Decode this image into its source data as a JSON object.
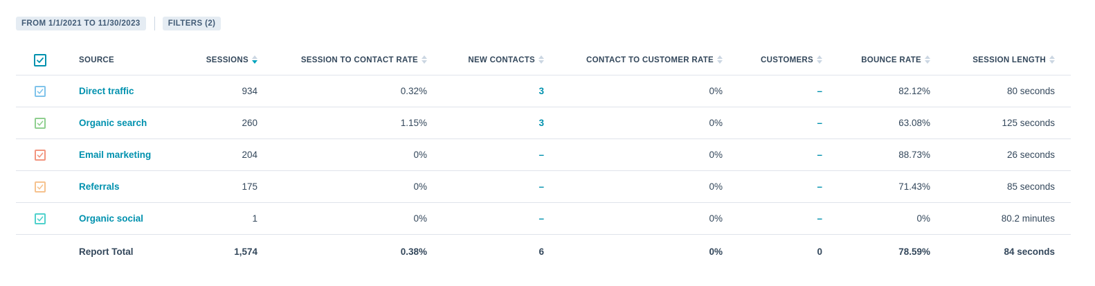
{
  "filters": {
    "date_range": "FROM 1/1/2021 TO 11/30/2023",
    "filters": "FILTERS (2)"
  },
  "columns": {
    "source": "SOURCE",
    "sessions": "SESSIONS",
    "session_to_contact_rate": "SESSION TO CONTACT RATE",
    "new_contacts": "NEW CONTACTS",
    "contact_to_customer_rate": "CONTACT TO CUSTOMER RATE",
    "customers": "CUSTOMERS",
    "bounce_rate": "BOUNCE RATE",
    "session_length": "SESSION LENGTH"
  },
  "colors": {
    "header_checkbox": "#0091ae",
    "active_sort": "#00a4bd",
    "link": "#0091ae"
  },
  "rows": [
    {
      "source": "Direct traffic",
      "checkbox_color": "#7fc3ea",
      "sessions": "934",
      "session_to_contact_rate": "0.32%",
      "new_contacts": "3",
      "contact_to_customer_rate": "0%",
      "customers": "–",
      "bounce_rate": "82.12%",
      "session_length": "80 seconds"
    },
    {
      "source": "Organic search",
      "checkbox_color": "#8fcf8f",
      "sessions": "260",
      "session_to_contact_rate": "1.15%",
      "new_contacts": "3",
      "contact_to_customer_rate": "0%",
      "customers": "–",
      "bounce_rate": "63.08%",
      "session_length": "125 seconds"
    },
    {
      "source": "Email marketing",
      "checkbox_color": "#f2957f",
      "sessions": "204",
      "session_to_contact_rate": "0%",
      "new_contacts": "–",
      "contact_to_customer_rate": "0%",
      "customers": "–",
      "bounce_rate": "88.73%",
      "session_length": "26 seconds"
    },
    {
      "source": "Referrals",
      "checkbox_color": "#f6c28e",
      "sessions": "175",
      "session_to_contact_rate": "0%",
      "new_contacts": "–",
      "contact_to_customer_rate": "0%",
      "customers": "–",
      "bounce_rate": "71.43%",
      "session_length": "85 seconds"
    },
    {
      "source": "Organic social",
      "checkbox_color": "#4fd1cc",
      "sessions": "1",
      "session_to_contact_rate": "0%",
      "new_contacts": "–",
      "contact_to_customer_rate": "0%",
      "customers": "–",
      "bounce_rate": "0%",
      "session_length": "80.2 minutes"
    }
  ],
  "total": {
    "label": "Report Total",
    "sessions": "1,574",
    "session_to_contact_rate": "0.38%",
    "new_contacts": "6",
    "contact_to_customer_rate": "0%",
    "customers": "0",
    "bounce_rate": "78.59%",
    "session_length": "84 seconds"
  }
}
